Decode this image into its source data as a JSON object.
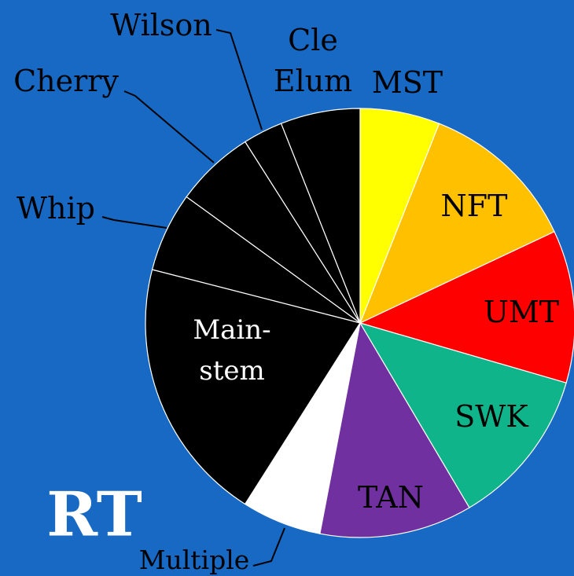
{
  "chart_data": {
    "type": "pie",
    "title": "RT",
    "categories": [
      "MST",
      "NFT",
      "UMT",
      "SWK",
      "TAN",
      "Multiple",
      "Main-stem",
      "Whip",
      "Cherry",
      "Wilson",
      "Cle Elum"
    ],
    "values": [
      6,
      12,
      11.5,
      12,
      11.5,
      6,
      20,
      6,
      6,
      3,
      6
    ],
    "colors": [
      "#ffff00",
      "#ffc000",
      "#ff0000",
      "#10b48a",
      "#7030a0",
      "#ffffff",
      "#000000",
      "#000000",
      "#000000",
      "#000000",
      "#000000"
    ],
    "label_colors": [
      "#000000",
      "#000000",
      "#000000",
      "#000000",
      "#000000",
      "#000000",
      "#ffffff",
      "#000000",
      "#000000",
      "#000000",
      "#000000"
    ]
  }
}
